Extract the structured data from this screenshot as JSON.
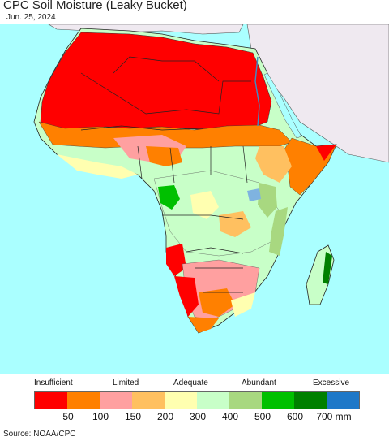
{
  "header": {
    "title": "CPC Soil Moisture (Leaky Bucket)",
    "date": "Jun. 25, 2024"
  },
  "legend": {
    "category_labels": [
      "Insufficient",
      "Limited",
      "Adequate",
      "Abundant",
      "Excessive"
    ],
    "tick_labels": [
      "50",
      "100",
      "150",
      "200",
      "300",
      "400",
      "500",
      "600",
      "700 mm"
    ],
    "colors": [
      "#ff0000",
      "#ff8000",
      "#ffa0a0",
      "#ffc060",
      "#ffffb0",
      "#c8ffc8",
      "#a8d880",
      "#00c000",
      "#008000",
      "#1e78c8"
    ]
  },
  "map": {
    "ocean_color": "#aaffff",
    "land_outside_color": "#efe9f0"
  },
  "footer": {
    "source": "Source: NOAA/CPC"
  }
}
